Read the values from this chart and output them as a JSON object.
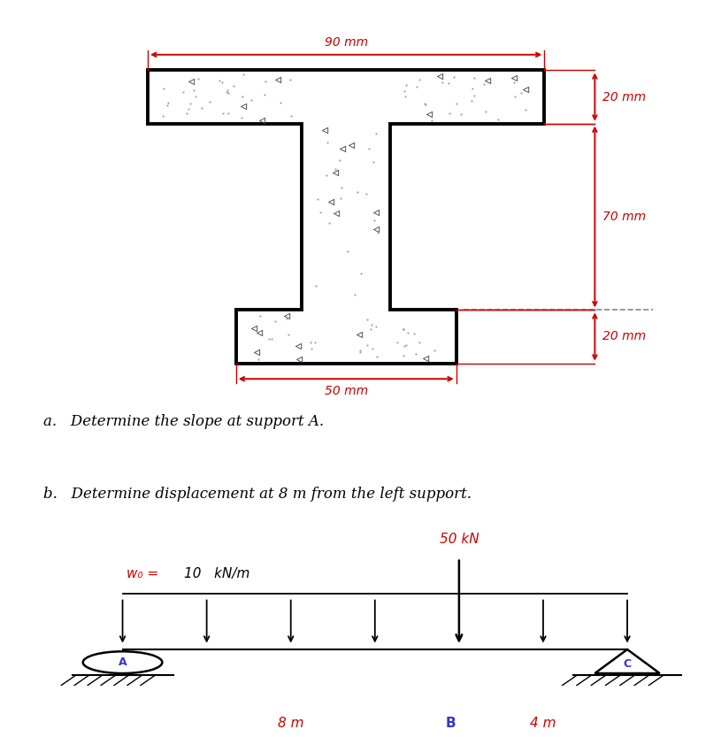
{
  "fig_width": 8.15,
  "fig_height": 8.33,
  "dpi": 100,
  "cross_section": {
    "dim_90mm": "90 mm",
    "dim_50mm": "50 mm",
    "dim_20mm_top": "20 mm",
    "dim_70mm": "70 mm",
    "dim_20mm_bot": "20 mm"
  },
  "text_a": "a.   Determine the slope at support A.",
  "text_b": "b.   Determine displacement at 8 m from the left support.",
  "beam": {
    "label_A": "A",
    "label_B": "B",
    "label_C": "C",
    "dist_load_label": "w₀ =",
    "dist_load_value": "10   kN/m",
    "point_load_label": "50 kN",
    "dist_AB": "8 m",
    "dist_BC": "4 m"
  },
  "colors": {
    "red": "#cc0000",
    "black": "#000000",
    "white": "#ffffff",
    "blue": "#3333cc",
    "gray": "#888888"
  }
}
